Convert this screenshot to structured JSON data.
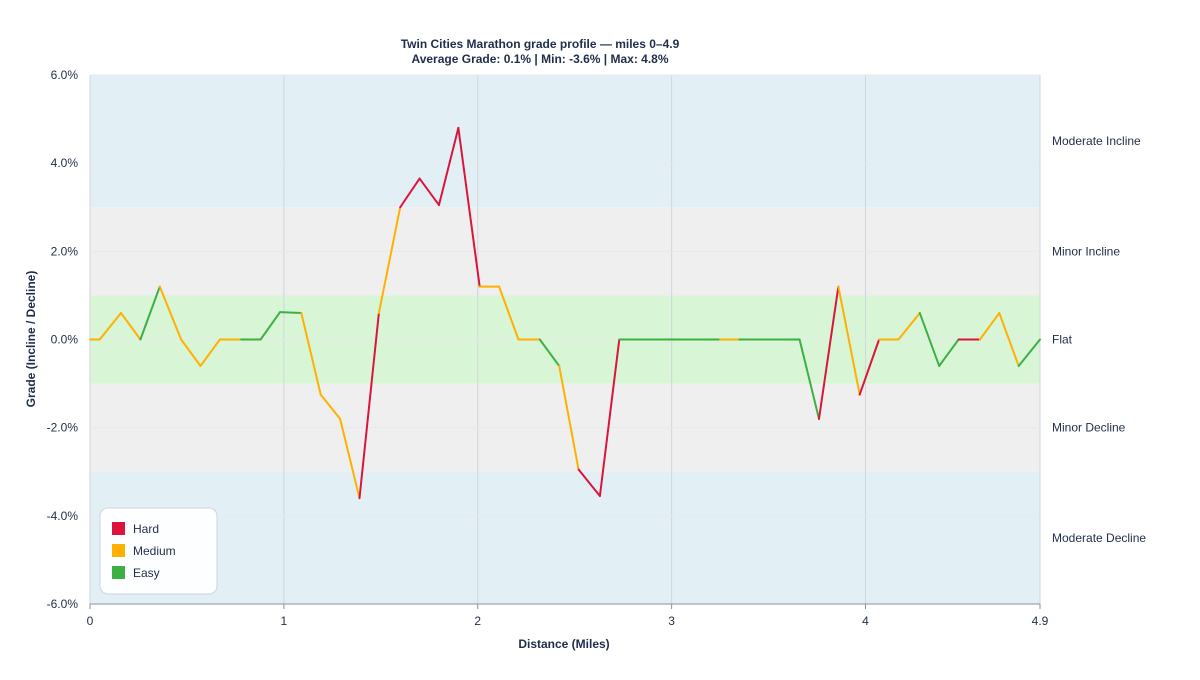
{
  "chart_data": {
    "type": "line",
    "title": "Twin Cities Marathon grade profile — miles 0–4.9",
    "subtitle": "Average Grade: 0.1% | Min: -3.6% | Max: 4.8%",
    "xlabel": "Distance (Miles)",
    "ylabel": "Grade (Incline / Decline)",
    "xlim": [
      0,
      4.9
    ],
    "ylim": [
      -6,
      6
    ],
    "x_ticks": [
      {
        "value": 0,
        "label": "0"
      },
      {
        "value": 1,
        "label": "1"
      },
      {
        "value": 2,
        "label": "2"
      },
      {
        "value": 3,
        "label": "3"
      },
      {
        "value": 4,
        "label": "4"
      },
      {
        "value": 4.9,
        "label": "4.9"
      }
    ],
    "y_ticks": [
      {
        "value": 6,
        "label": "6.0%"
      },
      {
        "value": 4,
        "label": "4.0%"
      },
      {
        "value": 2,
        "label": "2.0%"
      },
      {
        "value": 0,
        "label": "0.0%"
      },
      {
        "value": -2,
        "label": "-2.0%"
      },
      {
        "value": -4,
        "label": "-4.0%"
      },
      {
        "value": -6,
        "label": "-6.0%"
      }
    ],
    "bands": [
      {
        "label": "Moderate Incline",
        "from": 3,
        "to": 6,
        "color": "#e2f0f5"
      },
      {
        "label": "Minor Incline",
        "from": 1,
        "to": 3,
        "color": "#efefef"
      },
      {
        "label": "Flat",
        "from": -1,
        "to": 1,
        "color": "#d8f5d6"
      },
      {
        "label": "Minor Decline",
        "from": -3,
        "to": -1,
        "color": "#efefef"
      },
      {
        "label": "Moderate Decline",
        "from": -6,
        "to": -3,
        "color": "#e2f0f5"
      }
    ],
    "legend": {
      "placement": "bottom-left",
      "entries": [
        {
          "label": "Hard",
          "color": "#dc143c"
        },
        {
          "label": "Medium",
          "color": "#ffb000"
        },
        {
          "label": "Easy",
          "color": "#3cb043"
        }
      ]
    },
    "colors": {
      "hard": "#dc143c",
      "medium": "#ffb000",
      "easy": "#3cb043"
    },
    "grid": true,
    "series": [
      {
        "x": [
          0,
          0.05,
          0.16,
          0.26,
          0.36,
          0.47,
          0.57,
          0.67,
          0.78,
          0.88,
          0.98,
          1.09,
          1.19,
          1.29,
          1.39,
          1.49,
          1.6,
          1.7,
          1.8,
          1.9,
          2.01,
          2.11,
          2.21,
          2.32,
          2.42,
          2.52,
          2.63,
          2.73,
          2.83,
          2.94,
          3.04,
          3.14,
          3.25,
          3.35,
          3.45,
          3.55,
          3.66,
          3.76,
          3.86,
          3.97,
          4.07,
          4.17,
          4.28,
          4.38,
          4.48,
          4.59,
          4.69,
          4.79,
          4.9
        ],
        "y": [
          0,
          0,
          0.6,
          0,
          1.2,
          0,
          -0.6,
          0,
          0,
          0,
          0.62,
          0.6,
          -1.25,
          -1.8,
          -3.6,
          0.6,
          3.0,
          3.65,
          3.05,
          4.8,
          1.2,
          1.2,
          0,
          0,
          -0.6,
          -2.95,
          -3.55,
          0,
          0,
          0,
          0,
          0,
          0,
          0,
          0,
          0,
          0,
          -1.8,
          1.2,
          -1.25,
          0,
          0,
          0.6,
          -0.6,
          0,
          0,
          0.6,
          -0.6,
          0
        ],
        "difficulty": [
          "medium",
          "medium",
          "medium",
          "easy",
          "medium",
          "medium",
          "medium",
          "medium",
          "easy",
          "easy",
          "easy",
          "medium",
          "medium",
          "medium",
          "hard",
          "medium",
          "hard",
          "hard",
          "hard",
          "hard",
          "medium",
          "medium",
          "medium",
          "easy",
          "medium",
          "hard",
          "hard",
          "easy",
          "easy",
          "easy",
          "easy",
          "easy",
          "medium",
          "easy",
          "easy",
          "easy",
          "easy",
          "hard",
          "medium",
          "hard",
          "medium",
          "medium",
          "easy",
          "easy",
          "hard",
          "medium",
          "medium",
          "easy",
          "easy"
        ]
      }
    ]
  }
}
